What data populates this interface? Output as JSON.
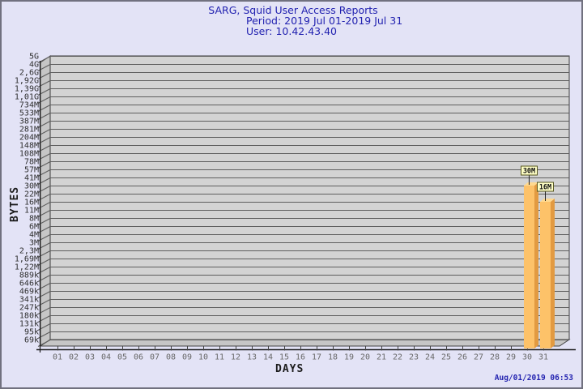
{
  "header": {
    "title": "SARG, Squid User Access Reports",
    "period": "Period: 2019 Jul 01-2019 Jul 31",
    "user": "User: 10.42.43.40"
  },
  "footer": {
    "timestamp": "Aug/01/2019 06:53"
  },
  "chart_data": {
    "type": "bar",
    "title": "SARG, Squid User Access Reports",
    "subtitle": [
      "Period: 2019 Jul 01-2019 Jul 31",
      "User: 10.42.43.40"
    ],
    "xlabel": "DAYS",
    "ylabel": "BYTES",
    "y_axis_scale": "non-linear byte scale (log-like), top to bottom",
    "y_ticks": [
      "5G",
      "4G",
      "2,6G",
      "1,92G",
      "1,39G",
      "1,01G",
      "734M",
      "533M",
      "387M",
      "281M",
      "204M",
      "148M",
      "108M",
      "78M",
      "57M",
      "41M",
      "30M",
      "22M",
      "16M",
      "11M",
      "8M",
      "6M",
      "4M",
      "3M",
      "2,3M",
      "1,69M",
      "1,22M",
      "889k",
      "646k",
      "469k",
      "341k",
      "247k",
      "180k",
      "131k",
      "95k",
      "69k"
    ],
    "x_ticks": [
      "01",
      "02",
      "03",
      "04",
      "05",
      "06",
      "07",
      "08",
      "09",
      "10",
      "11",
      "12",
      "13",
      "14",
      "15",
      "16",
      "17",
      "18",
      "19",
      "20",
      "21",
      "22",
      "23",
      "24",
      "25",
      "26",
      "27",
      "28",
      "29",
      "30",
      "31"
    ],
    "bars": [
      {
        "day": "30",
        "label": "30M",
        "approx_bytes": 30000000
      },
      {
        "day": "31",
        "label": "16M",
        "approx_bytes": 16000000
      }
    ],
    "series": [
      {
        "name": "bytes per day",
        "values": [
          0,
          0,
          0,
          0,
          0,
          0,
          0,
          0,
          0,
          0,
          0,
          0,
          0,
          0,
          0,
          0,
          0,
          0,
          0,
          0,
          0,
          0,
          0,
          0,
          0,
          0,
          0,
          0,
          0,
          30000000,
          16000000
        ]
      }
    ],
    "grid": "horizontal lines only",
    "legend": "none"
  },
  "colors": {
    "page_bg": "#e3e3f6",
    "page_border": "#71717f",
    "header_text": "#2222b0",
    "timestamp_text": "#2323b0",
    "plot_bg": "#d3d3d3",
    "plot_side_bg": "#c6c6c6",
    "gridline": "#5e5e5e",
    "plot_border": "#3c3c3c",
    "axis": "#1a1a1a",
    "y_tick_text": "#2e2e2e",
    "x_tick_text": "#686868",
    "bar_front": "#fdc269",
    "bar_side": "#e29a41",
    "bar_top": "#ffd98f",
    "callout_bg": "#ffffc6",
    "callout_border": "#55551e",
    "callout_text": "#101010"
  }
}
